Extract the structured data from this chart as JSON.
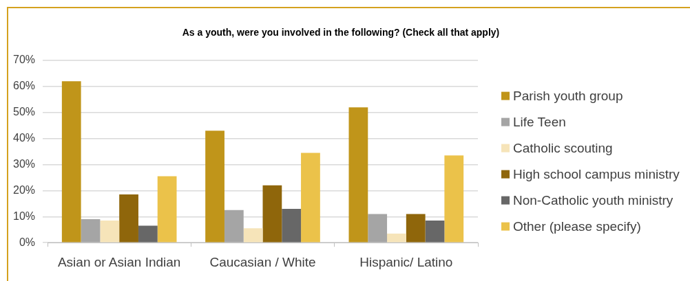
{
  "chart_data": {
    "type": "bar",
    "title": "As a youth, were you involved in the following? (Check all that apply)",
    "categories": [
      "Asian or Asian Indian",
      "Caucasian / White",
      "Hispanic/ Latino"
    ],
    "series": [
      {
        "name": "Parish youth group",
        "color": "#c0951a",
        "values": [
          62,
          43,
          52
        ]
      },
      {
        "name": "Life Teen",
        "color": "#a5a5a5",
        "values": [
          9,
          12.5,
          11
        ]
      },
      {
        "name": "Catholic scouting",
        "color": "#f6e4b9",
        "values": [
          8.5,
          5.5,
          3.5
        ]
      },
      {
        "name": "High school campus ministry",
        "color": "#8f660b",
        "values": [
          18.5,
          22,
          11
        ]
      },
      {
        "name": "Non-Catholic youth ministry",
        "color": "#676767",
        "values": [
          6.5,
          13,
          8.5
        ]
      },
      {
        "name": "Other (please specify)",
        "color": "#ebc24a",
        "values": [
          25.5,
          34.5,
          33.5
        ]
      }
    ],
    "ylim": [
      0,
      70
    ],
    "yticks": [
      {
        "value": 0,
        "label": "0%"
      },
      {
        "value": 10,
        "label": "10%"
      },
      {
        "value": 20,
        "label": "20%"
      },
      {
        "value": 30,
        "label": "30%"
      },
      {
        "value": 40,
        "label": "40%"
      },
      {
        "value": 50,
        "label": "50%"
      },
      {
        "value": 60,
        "label": "60%"
      },
      {
        "value": 70,
        "label": "70%"
      }
    ],
    "grid": "y",
    "legend": "right"
  }
}
